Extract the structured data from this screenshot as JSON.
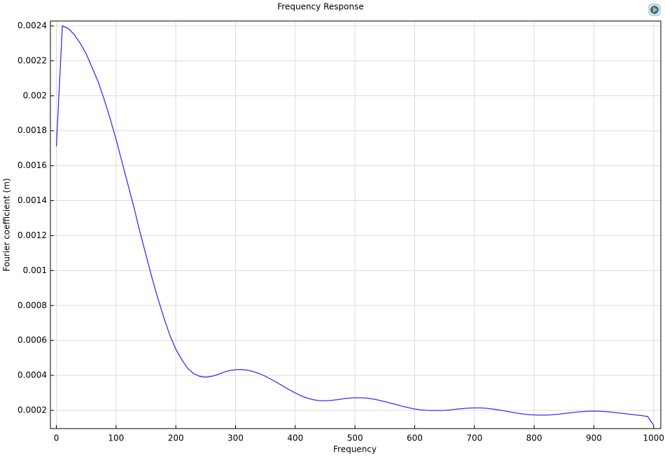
{
  "chart_data": {
    "type": "line",
    "title": "Frequency Response",
    "x_label": "Frequency",
    "y_label": "Fourier coefficient (m)",
    "color": "#3333ee",
    "grid": true,
    "xlim": [
      -10,
      1012
    ],
    "ylim": [
      9.58e-05,
      0.002428
    ],
    "xticks": [
      0,
      100,
      200,
      300,
      400,
      500,
      600,
      700,
      800,
      900,
      1000
    ],
    "yticks": [
      0.0002,
      0.0004,
      0.0006,
      0.0008,
      0.001,
      0.0012,
      0.0014,
      0.0016,
      0.0018,
      0.002,
      0.0022,
      0.0024
    ],
    "x": [
      0,
      10,
      20,
      30,
      40,
      50,
      60,
      70,
      80,
      90,
      100,
      110,
      120,
      130,
      140,
      150,
      160,
      170,
      180,
      190,
      200,
      210,
      220,
      230,
      240,
      250,
      260,
      270,
      280,
      290,
      300,
      310,
      320,
      330,
      340,
      350,
      360,
      370,
      380,
      390,
      400,
      410,
      420,
      430,
      440,
      450,
      460,
      470,
      480,
      490,
      500,
      510,
      520,
      530,
      540,
      550,
      560,
      570,
      580,
      590,
      600,
      610,
      620,
      630,
      640,
      650,
      660,
      670,
      680,
      690,
      700,
      710,
      720,
      730,
      740,
      750,
      760,
      770,
      780,
      790,
      800,
      810,
      820,
      830,
      840,
      850,
      860,
      870,
      880,
      890,
      900,
      910,
      920,
      930,
      940,
      950,
      960,
      970,
      980,
      990,
      1000
    ],
    "values": [
      0.00171,
      0.0024,
      0.002385,
      0.00235,
      0.0023,
      0.00224,
      0.00216,
      0.00208,
      0.00198,
      0.00187,
      0.00175,
      0.00162,
      0.00149,
      0.00136,
      0.00122,
      0.00109,
      0.00096,
      0.00084,
      0.00073,
      0.00063,
      0.00055,
      0.00049,
      0.00044,
      0.00041,
      0.000395,
      0.00039,
      0.000395,
      0.000405,
      0.000418,
      0.000428,
      0.000433,
      0.000434,
      0.00043,
      0.000422,
      0.00041,
      0.000395,
      0.000377,
      0.000358,
      0.000338,
      0.000318,
      0.0003,
      0.000283,
      0.00027,
      0.000261,
      0.000256,
      0.000255,
      0.000257,
      0.000261,
      0.000266,
      0.00027,
      0.000272,
      0.000272,
      0.00027,
      0.000265,
      0.000258,
      0.00025,
      0.000241,
      0.000232,
      0.000223,
      0.000215,
      0.000208,
      0.000203,
      0.0002,
      0.000199,
      0.000199,
      0.0002,
      0.000203,
      0.000207,
      0.00021,
      0.000213,
      0.000214,
      0.000214,
      0.000212,
      0.000208,
      0.000203,
      0.000197,
      0.000191,
      0.000185,
      0.00018,
      0.000176,
      0.000174,
      0.000173,
      0.000173,
      0.000175,
      0.000178,
      0.000182,
      0.000186,
      0.00019,
      0.000193,
      0.000195,
      0.000196,
      0.000195,
      0.000193,
      0.00019,
      0.000186,
      0.000182,
      0.000178,
      0.000174,
      0.00017,
      0.000165,
      0.000115
    ]
  }
}
